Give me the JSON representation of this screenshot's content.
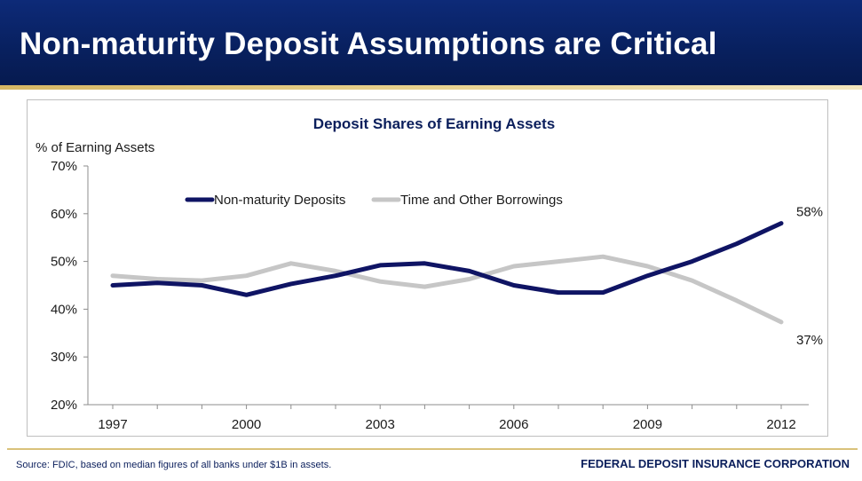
{
  "header": {
    "title": "Non-maturity Deposit Assumptions are Critical"
  },
  "footer": {
    "source": "Source: FDIC, based on median figures of all banks under $1B in assets.",
    "org": "FEDERAL DEPOSIT INSURANCE CORPORATION"
  },
  "colors": {
    "header_bg": "#0a2568",
    "accent_gold": "#d9c27a",
    "nonmaturity": "#0f1464",
    "time_borrowings": "#c6c6c6",
    "text_navy": "#0b1f5c"
  },
  "chart_data": {
    "type": "line",
    "title": "Deposit Shares of Earning Assets",
    "ylabel": "% of Earning Assets",
    "xlabel": "",
    "x": [
      1997,
      1998,
      1999,
      2000,
      2001,
      2002,
      2003,
      2004,
      2005,
      2006,
      2007,
      2008,
      2009,
      2010,
      2011,
      2012
    ],
    "xticks": [
      "1997",
      "2000",
      "2003",
      "2006",
      "2009",
      "2012"
    ],
    "xtick_values": [
      1997,
      2000,
      2003,
      2006,
      2009,
      2012
    ],
    "yticks": [
      "20%",
      "30%",
      "40%",
      "50%",
      "60%",
      "70%"
    ],
    "ytick_values": [
      20,
      30,
      40,
      50,
      60,
      70
    ],
    "ylim": [
      20,
      70
    ],
    "xlim": [
      1997,
      2012
    ],
    "grid": false,
    "legend_position": "top-center",
    "series": [
      {
        "name": "Non-maturity Deposits",
        "values": [
          45,
          45.5,
          45,
          43,
          45.3,
          47,
          49.2,
          49.6,
          48,
          45,
          43.5,
          43.5,
          47,
          50,
          53.7,
          58
        ],
        "end_label": "58%"
      },
      {
        "name": "Time and Other Borrowings",
        "values": [
          47,
          46.3,
          46,
          47,
          49.6,
          48,
          45.8,
          44.7,
          46.3,
          49,
          50,
          51,
          49,
          46,
          41.8,
          37.3
        ],
        "end_label": "37%"
      }
    ]
  }
}
